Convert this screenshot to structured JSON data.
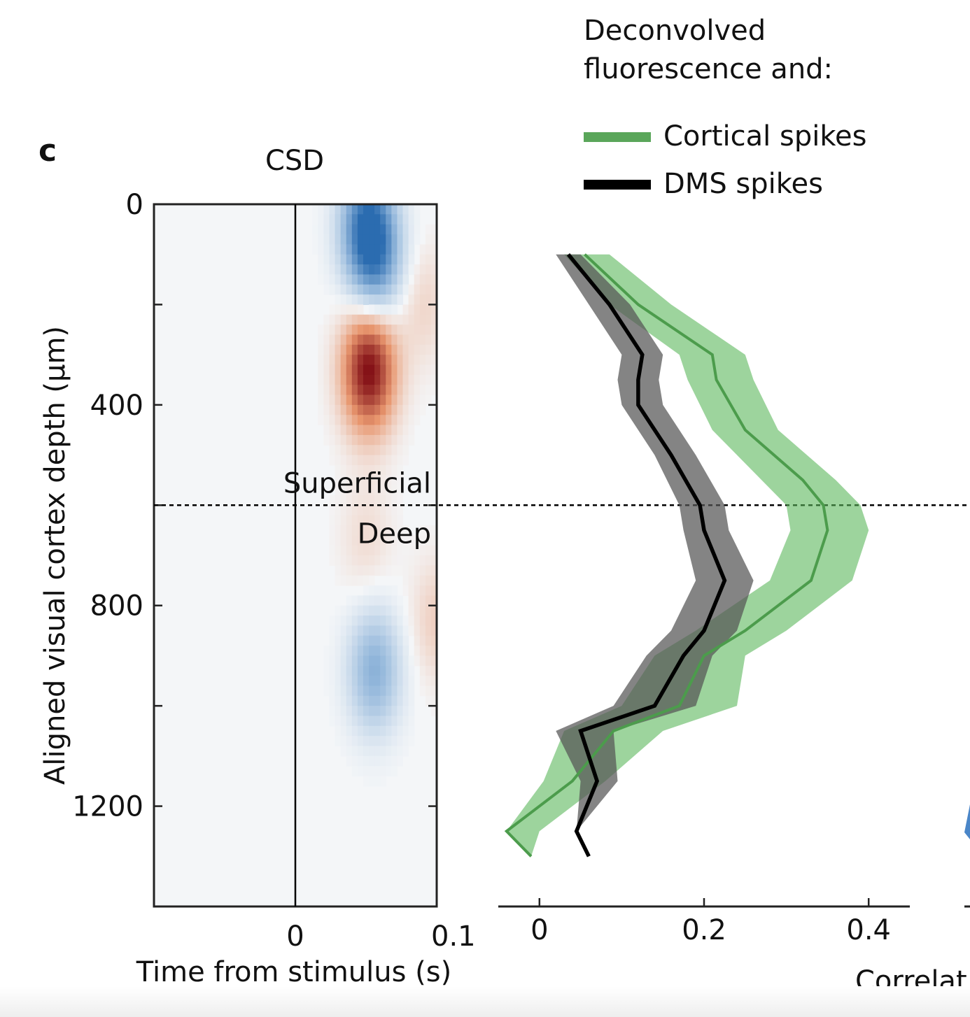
{
  "panel_label": "c",
  "legend": {
    "title_line1": "Deconvolved",
    "title_line2": "fluorescence and:",
    "entries": [
      {
        "label": "Cortical spikes",
        "color": "#5aa65a"
      },
      {
        "label": "DMS spikes",
        "color": "#000000"
      }
    ]
  },
  "colors": {
    "green_line": "#4c9c4c",
    "green_band": "#5cb85c",
    "black_line": "#000000",
    "black_band": "#555555",
    "csd_blue": "#2b6cb0",
    "csd_red": "#7f0a12",
    "csd_background": "#f4f6f8"
  },
  "chart_data": [
    {
      "type": "heatmap",
      "title": "CSD",
      "xlabel": "Time from stimulus (s)",
      "ylabel": "Aligned visual cortex depth (µm)",
      "x_ticks": [
        {
          "value": 0,
          "label": "0"
        },
        {
          "value": 0.1,
          "label": "0.1"
        }
      ],
      "y_ticks": [
        {
          "value": 0,
          "label": "0"
        },
        {
          "value": 200,
          "label": ""
        },
        {
          "value": 400,
          "label": "400"
        },
        {
          "value": 600,
          "label": ""
        },
        {
          "value": 800,
          "label": "800"
        },
        {
          "value": 1000,
          "label": ""
        },
        {
          "value": 1200,
          "label": "1200"
        }
      ],
      "xlim": [
        -0.1,
        0.1
      ],
      "ylim": [
        0,
        1400
      ],
      "y_inverted": true,
      "stimulus_line_x": 0,
      "boundary_depth": 600,
      "annotations": {
        "above": "Superficial",
        "below": "Deep"
      },
      "sources": [
        {
          "t": 0.05,
          "depth": 40,
          "value": -0.8
        },
        {
          "t": 0.058,
          "depth": 110,
          "value": -0.6
        },
        {
          "t": 0.052,
          "depth": 330,
          "value": 1.0
        },
        {
          "t": 0.09,
          "depth": 200,
          "value": 0.15
        },
        {
          "t": 0.056,
          "depth": 930,
          "value": -0.55
        },
        {
          "t": 0.05,
          "depth": 670,
          "value": 0.12
        },
        {
          "t": 0.1,
          "depth": 830,
          "value": 0.18
        }
      ]
    },
    {
      "type": "line",
      "xlabel": "Correlat",
      "x_ticks": [
        {
          "value": 0,
          "label": "0"
        },
        {
          "value": 0.2,
          "label": "0.2"
        },
        {
          "value": 0.4,
          "label": "0.4"
        }
      ],
      "xlim": [
        -0.05,
        0.45
      ],
      "ylim": [
        0,
        1400
      ],
      "y_inverted": true,
      "series": [
        {
          "name": "Cortical spikes",
          "depth": [
            100,
            200,
            300,
            350,
            450,
            550,
            600,
            650,
            750,
            850,
            900,
            1000,
            1050,
            1150,
            1250,
            1300
          ],
          "mean": [
            0.055,
            0.12,
            0.21,
            0.215,
            0.25,
            0.32,
            0.345,
            0.35,
            0.33,
            0.25,
            0.2,
            0.17,
            0.09,
            0.04,
            -0.04,
            -0.01
          ],
          "lower": [
            0.03,
            0.085,
            0.17,
            0.18,
            0.21,
            0.27,
            0.3,
            0.305,
            0.28,
            0.19,
            0.14,
            0.1,
            0.03,
            0.005,
            -0.04,
            -0.01
          ],
          "upper": [
            0.085,
            0.16,
            0.25,
            0.26,
            0.29,
            0.36,
            0.39,
            0.4,
            0.38,
            0.3,
            0.25,
            0.24,
            0.15,
            0.08,
            0.0,
            -0.01
          ]
        },
        {
          "name": "DMS spikes",
          "depth": [
            100,
            200,
            300,
            350,
            400,
            500,
            600,
            650,
            750,
            850,
            900,
            1000,
            1050,
            1150,
            1250,
            1300
          ],
          "mean": [
            0.035,
            0.085,
            0.125,
            0.12,
            0.12,
            0.16,
            0.195,
            0.2,
            0.225,
            0.2,
            0.175,
            0.14,
            0.05,
            0.07,
            0.045,
            0.06
          ],
          "lower": [
            0.02,
            0.06,
            0.1,
            0.095,
            0.1,
            0.14,
            0.17,
            0.175,
            0.19,
            0.16,
            0.13,
            0.09,
            0.02,
            0.05,
            0.045,
            0.06
          ],
          "upper": [
            0.05,
            0.11,
            0.15,
            0.145,
            0.15,
            0.19,
            0.225,
            0.23,
            0.26,
            0.24,
            0.21,
            0.19,
            0.09,
            0.095,
            0.045,
            0.06
          ]
        }
      ]
    }
  ]
}
